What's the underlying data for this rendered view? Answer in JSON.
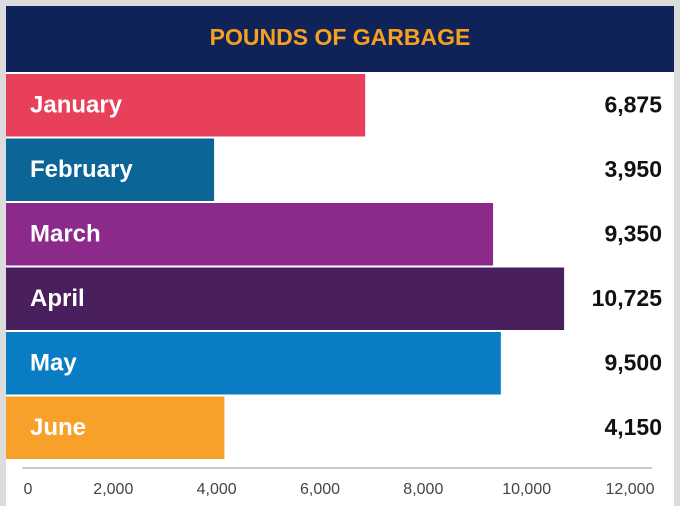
{
  "chart_data": {
    "type": "bar",
    "orientation": "horizontal",
    "title": "POUNDS OF GARBAGE",
    "categories": [
      "January",
      "February",
      "March",
      "April",
      "May",
      "June"
    ],
    "values": [
      6875,
      3950,
      9350,
      10725,
      9500,
      4150
    ],
    "value_labels": [
      "6,875",
      "3,950",
      "9,350",
      "10,725",
      "9,500",
      "4,150"
    ],
    "colors": [
      "#e8405a",
      "#0b6596",
      "#8c2a8c",
      "#4a1f5e",
      "#0a7cc4",
      "#f7a12a"
    ],
    "xlim": [
      0,
      12000
    ],
    "xticks": [
      0,
      {
        "value": 2000,
        "label": "2,000"
      },
      {
        "value": 4000,
        "label": "4,000"
      },
      {
        "value": 6000,
        "label": "6,000"
      },
      {
        "value": 8000,
        "label": "8,000"
      },
      {
        "value": 10000,
        "label": "10,000"
      },
      {
        "value": 12000,
        "label": "12,000"
      }
    ]
  }
}
